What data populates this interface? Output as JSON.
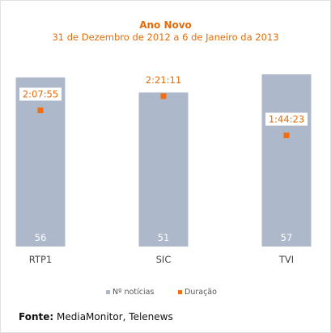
{
  "chart_data": {
    "type": "bar",
    "title": "Ano Novo",
    "subtitle": "31 de Dezembro de 2012 a 6 de Janeiro da 2013",
    "categories": [
      "RTP1",
      "SIC",
      "TVI"
    ],
    "series": [
      {
        "name": "Nº notícias",
        "type": "bar",
        "values": [
          56,
          51,
          57
        ],
        "value_labels": [
          "56",
          "51",
          "57"
        ]
      },
      {
        "name": "Duração",
        "type": "marker",
        "values_seconds": [
          7675,
          8471,
          6263
        ],
        "value_labels": [
          "2:07:55",
          "2:21:11",
          "1:44:23"
        ]
      }
    ],
    "legend": {
      "position": "bottom",
      "items": [
        "Nº notícias",
        "Duração"
      ]
    },
    "colors": {
      "bar": "#adb9ca",
      "marker": "#f26e10",
      "text": "#e46c0a",
      "bar_label": "#ffffff",
      "axis_label": "#444444"
    }
  },
  "source": {
    "label": "Fonte:",
    "text": "MediaMonitor, Telenews"
  }
}
